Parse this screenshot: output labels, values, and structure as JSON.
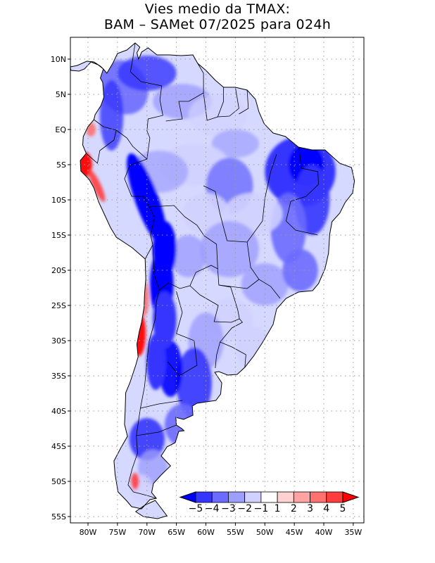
{
  "title": {
    "line1": "Vies medio da TMAX:",
    "line2": "BAM – SAMet 07/2025  para 024h"
  },
  "map": {
    "region": "South America",
    "lat_range": [
      -55,
      12
    ],
    "lon_range": [
      -83,
      -34
    ],
    "lat_labels": [
      "10N",
      "5N",
      "EQ",
      "5S",
      "10S",
      "15S",
      "20S",
      "25S",
      "30S",
      "35S",
      "40S",
      "45S",
      "50S",
      "55S"
    ],
    "lat_values": [
      10,
      5,
      0,
      -5,
      -10,
      -15,
      -20,
      -25,
      -30,
      -35,
      -40,
      -45,
      -50,
      -55
    ],
    "lon_labels": [
      "80W",
      "75W",
      "70W",
      "65W",
      "60W",
      "55W",
      "50W",
      "45W",
      "40W",
      "35W"
    ],
    "lon_values": [
      -80,
      -75,
      -70,
      -65,
      -60,
      -55,
      -50,
      -45,
      -40,
      -35
    ]
  },
  "colorbar": {
    "labels": [
      "−5",
      "−4",
      "−3",
      "−2",
      "−1",
      "1",
      "2",
      "3",
      "4",
      "5"
    ],
    "colors": [
      "#0000ff",
      "#3535ff",
      "#6b6bff",
      "#9e9eff",
      "#d1d1ff",
      "#ffffff",
      "#ffd1d1",
      "#ffa3a3",
      "#ff7070",
      "#ff3d3d",
      "#ff0000"
    ]
  },
  "palette": {
    "frame": "#000000",
    "grid": "#9a9a9a",
    "border": "#000000"
  }
}
